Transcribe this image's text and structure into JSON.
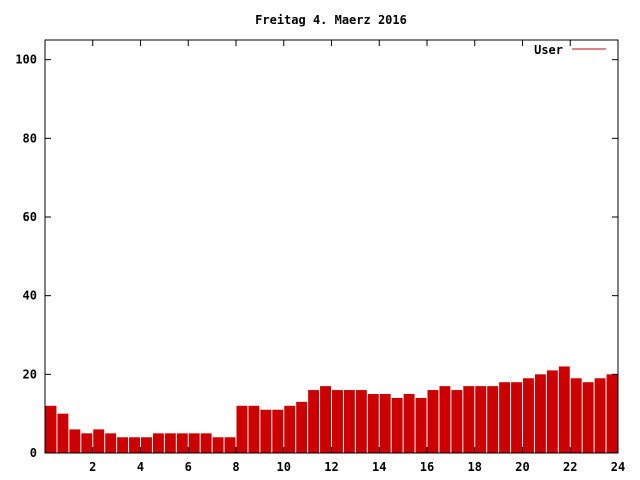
{
  "chart_data": {
    "type": "bar",
    "title": "Freitag 4. Maerz 2016",
    "xlabel": "",
    "ylabel": "",
    "xlim": [
      0,
      24
    ],
    "ylim": [
      0,
      105
    ],
    "x_ticks": [
      "2",
      "4",
      "6",
      "8",
      "10",
      "12",
      "14",
      "16",
      "18",
      "20",
      "22",
      "24"
    ],
    "y_ticks": [
      "0",
      "20",
      "40",
      "60",
      "80",
      "100"
    ],
    "grid": false,
    "legend_position": "top-right",
    "series": [
      {
        "name": "User",
        "color": "#cc0000",
        "hourly_values": [
          12,
          10,
          6,
          5,
          6,
          5,
          4,
          4,
          4,
          5,
          5,
          5,
          5,
          5,
          4,
          4,
          12,
          12,
          11,
          11,
          12,
          13,
          16,
          17,
          16,
          16,
          16,
          15,
          15,
          14,
          15,
          14,
          16,
          17,
          16,
          17,
          17,
          17,
          18,
          18,
          19,
          20,
          21,
          22,
          19,
          18,
          19,
          20
        ]
      }
    ]
  }
}
